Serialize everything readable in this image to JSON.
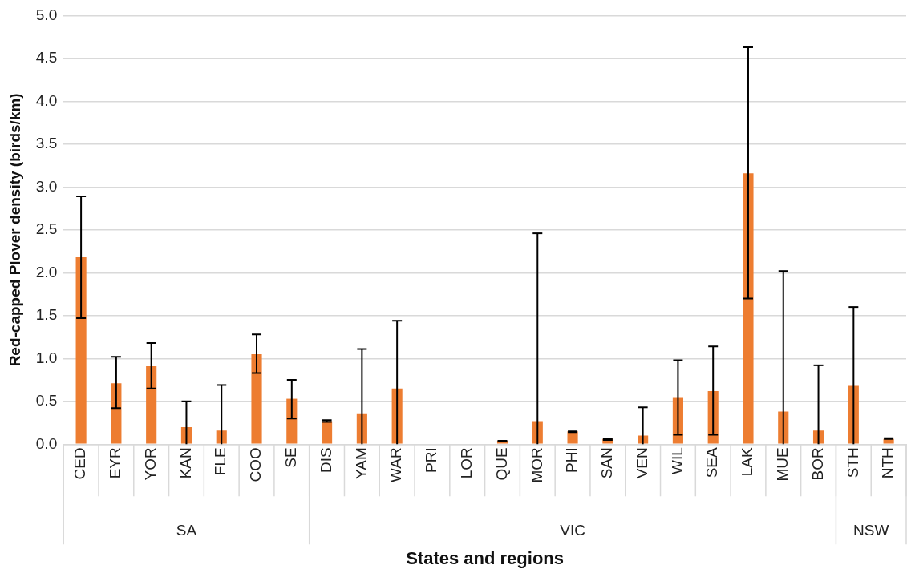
{
  "chart_data": {
    "type": "bar",
    "xlabel": "States and regions",
    "ylabel": "Red-capped Plover density (birds/km)",
    "categories": [
      "CED",
      "EYR",
      "YOR",
      "KAN",
      "FLE",
      "COO",
      "SE",
      "DIS",
      "YAM",
      "WAR",
      "PRI",
      "LOR",
      "QUE",
      "MOR",
      "PHI",
      "SAN",
      "VEN",
      "WIL",
      "SEA",
      "LAK",
      "MUE",
      "BOR",
      "STH",
      "NTH"
    ],
    "values": [
      2.18,
      0.71,
      0.91,
      0.2,
      0.16,
      1.05,
      0.53,
      0.27,
      0.36,
      0.65,
      null,
      null,
      0.04,
      0.27,
      0.15,
      0.06,
      0.1,
      0.54,
      0.62,
      3.16,
      0.38,
      0.16,
      0.68,
      0.06
    ],
    "errors": [
      [
        1.47,
        2.89
      ],
      [
        0.42,
        1.02
      ],
      [
        0.65,
        1.18
      ],
      [
        0,
        0.5
      ],
      [
        0,
        0.69
      ],
      [
        0.83,
        1.28
      ],
      [
        0.3,
        0.75
      ],
      [
        0.26,
        0.28
      ],
      [
        0,
        1.11
      ],
      [
        0,
        1.44
      ],
      null,
      null,
      [
        0.03,
        0.04
      ],
      [
        0,
        2.46
      ],
      [
        0.14,
        0.15
      ],
      [
        0.05,
        0.06
      ],
      [
        0,
        0.43
      ],
      [
        0.11,
        0.98
      ],
      [
        0.11,
        1.14
      ],
      [
        1.7,
        4.63
      ],
      [
        0,
        2.02
      ],
      [
        0,
        0.92
      ],
      [
        0,
        1.6
      ],
      [
        0.06,
        0.07
      ]
    ],
    "color": "#ed7d31",
    "ylim": [
      0,
      5
    ],
    "yticks": [
      {
        "value": 0,
        "label": "0.0"
      },
      {
        "value": 0.5,
        "label": "0.5"
      },
      {
        "value": 1,
        "label": "1.0"
      },
      {
        "value": 1.5,
        "label": "1.5"
      },
      {
        "value": 2,
        "label": "2.0"
      },
      {
        "value": 2.5,
        "label": "2.5"
      },
      {
        "value": 3,
        "label": "3.0"
      },
      {
        "value": 3.5,
        "label": "3.5"
      },
      {
        "value": 4,
        "label": "4.0"
      },
      {
        "value": 4.5,
        "label": "4.5"
      },
      {
        "value": 5,
        "label": "5.0"
      }
    ],
    "grid": "y",
    "legend": false,
    "annotations": [
      "SA",
      "VIC",
      "NSW"
    ]
  }
}
